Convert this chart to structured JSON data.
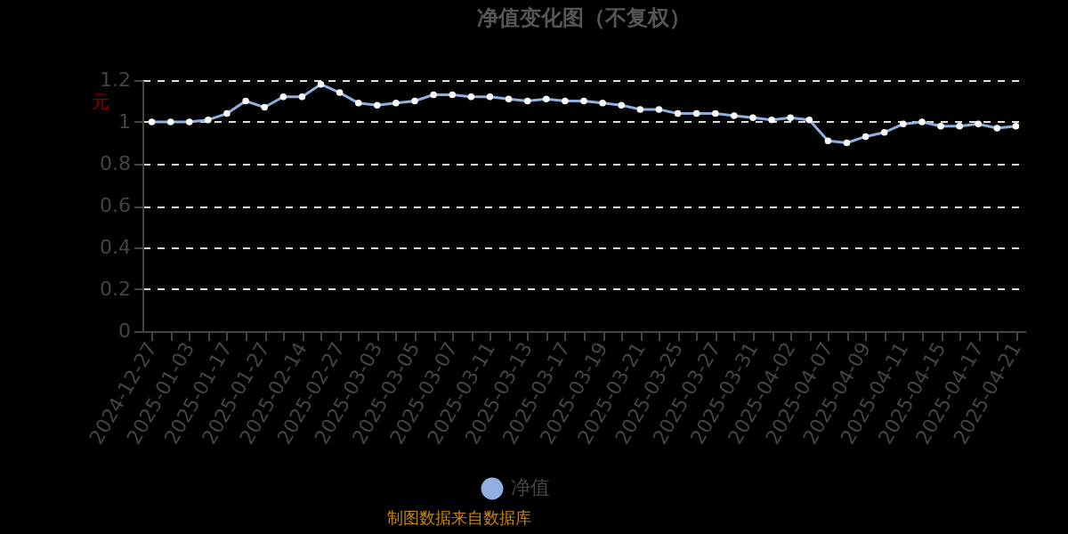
{
  "chart_data": {
    "type": "line",
    "title": "净值变化图（不复权）",
    "ylabel": "元",
    "categories": [
      "2024-12-27",
      null,
      "2025-01-03",
      null,
      "2025-01-17",
      null,
      "2025-01-27",
      null,
      "2025-02-14",
      null,
      "2025-02-27",
      null,
      "2025-03-03",
      null,
      "2025-03-05",
      null,
      "2025-03-07",
      null,
      "2025-03-11",
      null,
      "2025-03-13",
      null,
      "2025-03-17",
      null,
      "2025-03-19",
      null,
      "2025-03-21",
      null,
      "2025-03-25",
      null,
      "2025-03-27",
      null,
      "2025-03-31",
      null,
      "2025-04-02",
      null,
      "2025-04-07",
      null,
      "2025-04-09",
      null,
      "2025-04-11",
      null,
      "2025-04-15",
      null,
      "2025-04-17",
      null,
      "2025-04-21"
    ],
    "series": [
      {
        "name": "净值",
        "color": "#8fb0e0",
        "values": [
          1.0,
          1.0,
          1.0,
          1.01,
          1.04,
          1.1,
          1.07,
          1.12,
          1.12,
          1.18,
          1.14,
          1.09,
          1.08,
          1.09,
          1.1,
          1.13,
          1.13,
          1.12,
          1.12,
          1.11,
          1.1,
          1.11,
          1.1,
          1.1,
          1.09,
          1.08,
          1.06,
          1.06,
          1.04,
          1.04,
          1.04,
          1.03,
          1.02,
          1.01,
          1.02,
          1.01,
          0.91,
          0.9,
          0.93,
          0.95,
          0.99,
          1.0,
          0.98,
          0.98,
          0.99,
          0.97,
          0.98
        ]
      }
    ],
    "ylim": [
      0,
      1.2
    ],
    "yticks": [
      0,
      0.2,
      0.4,
      0.6,
      0.8,
      1,
      1.2
    ],
    "grid": "y",
    "legend": "bottom",
    "marker": "circle",
    "line_style": "solid",
    "annotations": [
      "制图数据来自数据库"
    ]
  }
}
